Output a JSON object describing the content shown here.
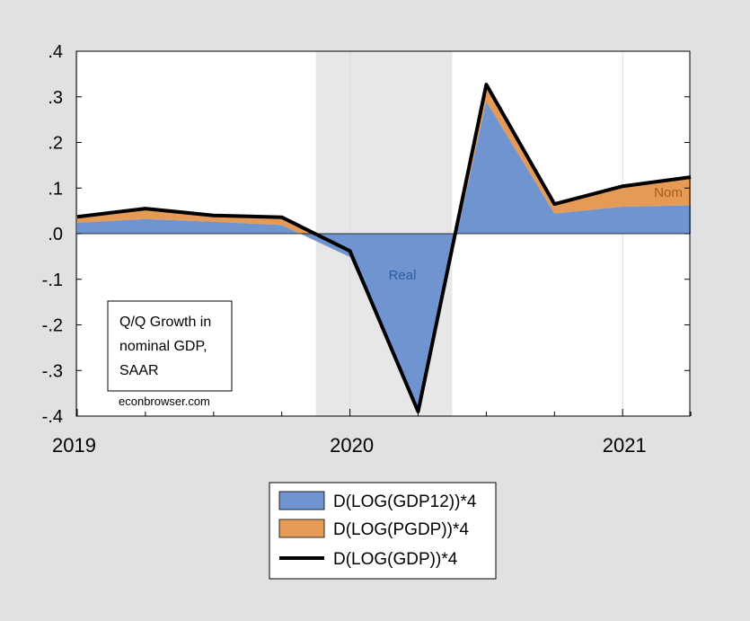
{
  "chart_data": {
    "type": "area",
    "x": [
      "2019Q1",
      "2019Q2",
      "2019Q3",
      "2019Q4",
      "2020Q1",
      "2020Q2",
      "2020Q3",
      "2020Q4",
      "2021Q1",
      "2021Q2"
    ],
    "series": [
      {
        "name": "D(LOG(GDP12))*4",
        "kind": "area",
        "color": "#7094cf",
        "values": [
          0.024,
          0.032,
          0.026,
          0.019,
          -0.051,
          -0.385,
          0.29,
          0.044,
          0.059,
          0.062
        ]
      },
      {
        "name": "D(LOG(PGDP))*4",
        "kind": "area-stacked",
        "color": "#e59a55",
        "values": [
          0.013,
          0.023,
          0.014,
          0.017,
          0.013,
          -0.005,
          0.037,
          0.021,
          0.045,
          0.062
        ]
      },
      {
        "name": "D(LOG(GDP))*4",
        "kind": "line",
        "color": "#000000",
        "values": [
          0.037,
          0.055,
          0.04,
          0.036,
          -0.038,
          -0.39,
          0.327,
          0.065,
          0.104,
          0.124
        ]
      }
    ],
    "xtick_labels": [
      "2019",
      "2020",
      "2021"
    ],
    "ytick_labels": [
      ".4",
      ".3",
      ".2",
      ".1",
      ".0",
      "-.1",
      "-.2",
      "-.3",
      "-.4"
    ],
    "yticks": [
      0.4,
      0.3,
      0.2,
      0.1,
      0.0,
      -0.1,
      -0.2,
      -0.3,
      -0.4
    ],
    "ylim": [
      -0.4,
      0.4
    ],
    "recession_shading": {
      "from": "2020Q1",
      "to": "2020Q2",
      "color": "#e7e7e7"
    },
    "annotations": {
      "box_text": [
        "Q/Q Growth in",
        "nominal GDP,",
        "SAAR"
      ],
      "source": "econbrowser.com",
      "real_label": "Real",
      "nom_label": "Nom",
      "real_color": "#2a5ea8",
      "nom_color": "#a0601a"
    },
    "legend": "bottom-center"
  }
}
